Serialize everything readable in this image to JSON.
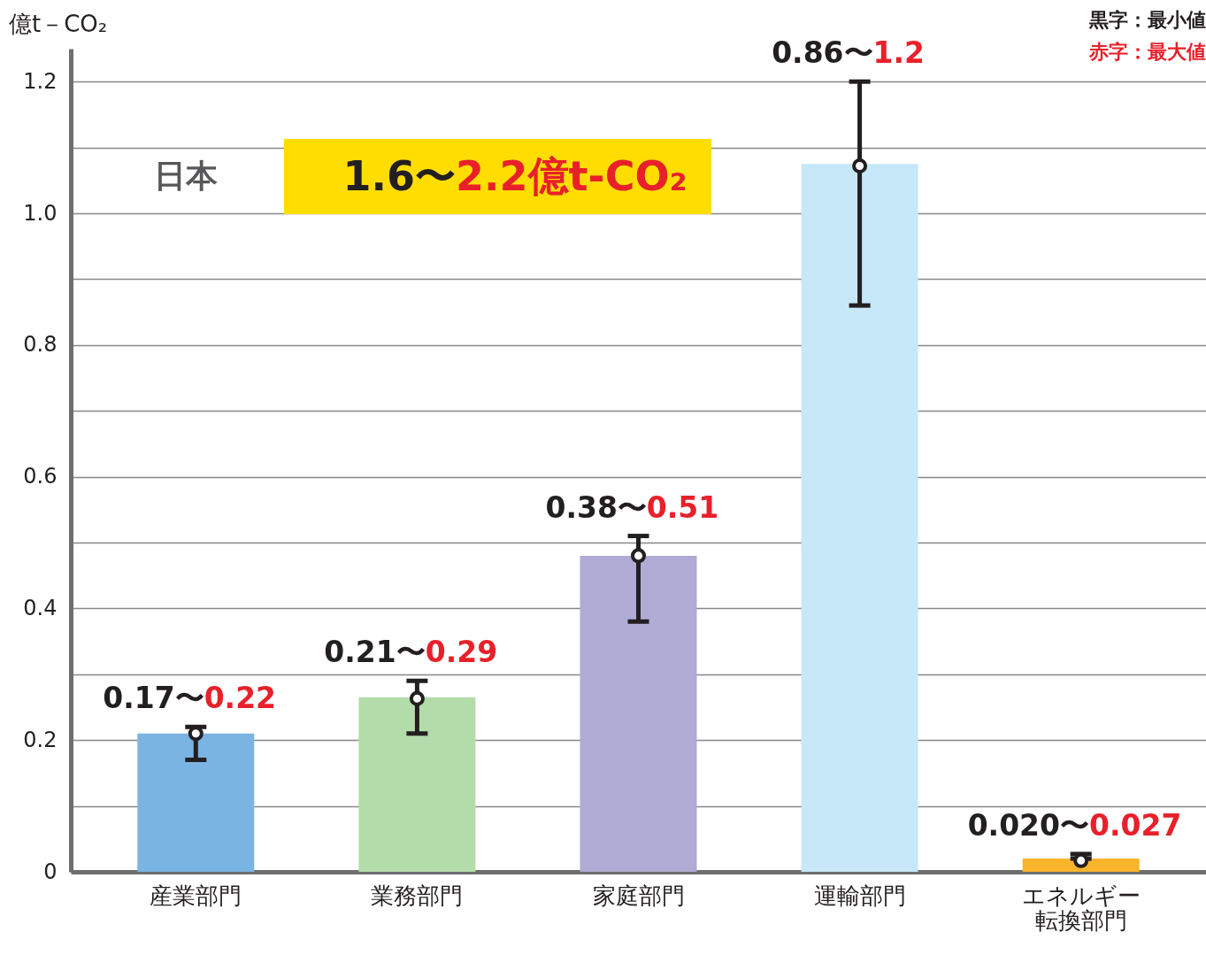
{
  "chart_data": {
    "type": "bar",
    "ylabel": "億t－CO₂",
    "categories": [
      "産業部門",
      "業務部門",
      "家庭部門",
      "運輸部門",
      "エネルギー転換部門"
    ],
    "series": [
      {
        "type": "bar",
        "colors": [
          "#7ab4e2",
          "#b3dcab",
          "#afabd4",
          "#c6e8f8",
          "#f9b42c"
        ],
        "values": [
          0.21,
          0.265,
          0.48,
          1.075,
          0.02
        ],
        "errors": [
          [
            0.17,
            0.22
          ],
          [
            0.21,
            0.29
          ],
          [
            0.38,
            0.51
          ],
          [
            0.86,
            1.2
          ],
          [
            0.02,
            0.027
          ]
        ]
      },
      {
        "type": "scatter",
        "color": "#231f20",
        "marker": "circle",
        "x": [
          "産業部門",
          "業務部門",
          "家庭部門",
          "運輸部門",
          "エネルギー転換部門"
        ],
        "values": [
          0.21,
          0.263,
          0.48,
          1.072,
          0.017
        ]
      }
    ],
    "ylim": [
      0,
      1.25
    ],
    "yticks": [
      0,
      {
        "value": 0.1,
        "label": null
      },
      0.2,
      {
        "value": 0.3,
        "label": null
      },
      0.4,
      {
        "value": 0.5,
        "label": null
      },
      0.6,
      {
        "value": 0.7,
        "label": null
      },
      0.8,
      {
        "value": 0.9,
        "label": null
      },
      {
        "value": 1,
        "label": "1.0"
      },
      {
        "value": 1.1,
        "label": null
      },
      1.2
    ],
    "grid": "y",
    "annotations": [
      {
        "text": "0.17〜0.22",
        "x": "産業部門",
        "y": 0.22
      },
      {
        "text": "0.21〜0.29",
        "x": "業務部門",
        "y": 0.29
      },
      {
        "text": "0.38〜0.51",
        "x": "家庭部門",
        "y": 0.51
      },
      {
        "text": "0.86〜1.2",
        "x": "運輸部門",
        "y": 1.2
      },
      {
        "text": "0.020〜0.027",
        "x": "エネルギー転換部門",
        "y": 0.027
      },
      "日本",
      "1.6〜2.2億t-CO₂",
      "黒字：最小値",
      "赤字：最大値"
    ]
  }
}
